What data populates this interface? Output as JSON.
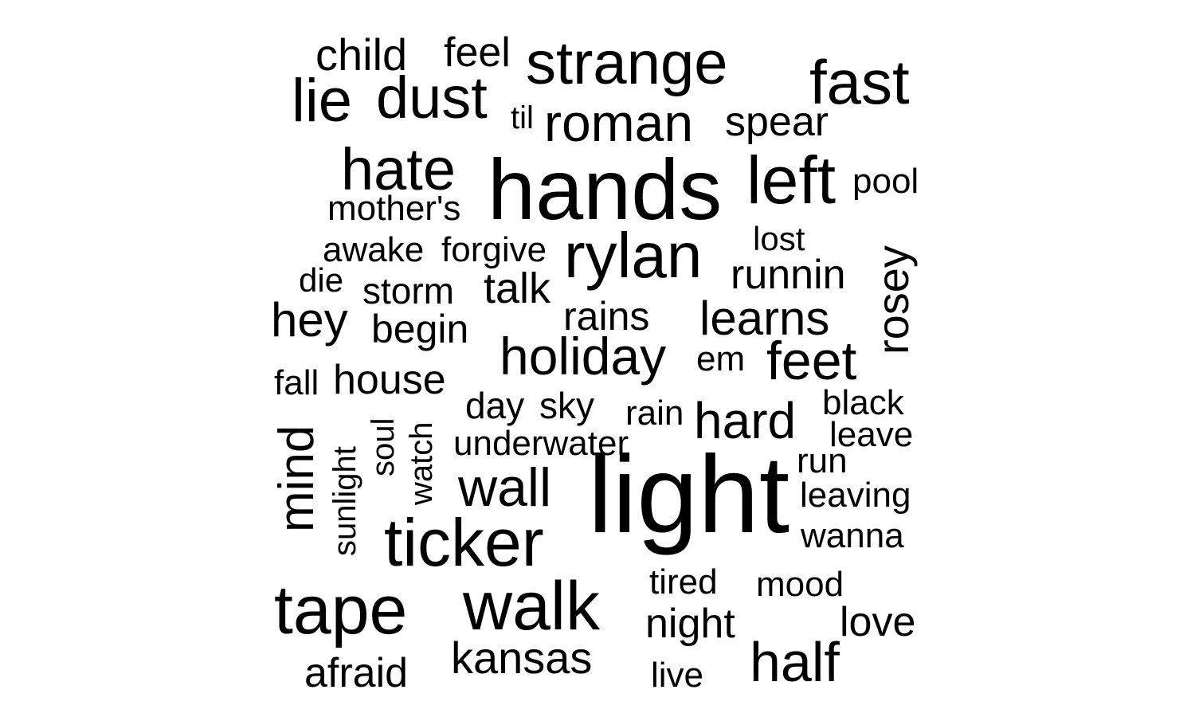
{
  "chart_data": {
    "type": "wordcloud",
    "color": "#000000",
    "words": [
      {
        "text": "light",
        "weight": 10,
        "orientation": "horizontal"
      },
      {
        "text": "hands",
        "weight": 9.5,
        "orientation": "horizontal"
      },
      {
        "text": "rylan",
        "weight": 7.5,
        "orientation": "horizontal"
      },
      {
        "text": "left",
        "weight": 7.5,
        "orientation": "horizontal"
      },
      {
        "text": "ticker",
        "weight": 7.5,
        "orientation": "horizontal"
      },
      {
        "text": "tape",
        "weight": 7.5,
        "orientation": "horizontal"
      },
      {
        "text": "walk",
        "weight": 7.5,
        "orientation": "horizontal"
      },
      {
        "text": "fast",
        "weight": 7,
        "orientation": "horizontal"
      },
      {
        "text": "strange",
        "weight": 6.5,
        "orientation": "horizontal"
      },
      {
        "text": "lie",
        "weight": 6.5,
        "orientation": "horizontal"
      },
      {
        "text": "dust",
        "weight": 6.5,
        "orientation": "horizontal"
      },
      {
        "text": "hate",
        "weight": 6.5,
        "orientation": "horizontal"
      },
      {
        "text": "half",
        "weight": 6.5,
        "orientation": "horizontal"
      },
      {
        "text": "holiday",
        "weight": 6,
        "orientation": "horizontal"
      },
      {
        "text": "roman",
        "weight": 6,
        "orientation": "horizontal"
      },
      {
        "text": "feet",
        "weight": 6,
        "orientation": "horizontal"
      },
      {
        "text": "hard",
        "weight": 6,
        "orientation": "horizontal"
      },
      {
        "text": "wall",
        "weight": 6,
        "orientation": "horizontal"
      },
      {
        "text": "mind",
        "weight": 6,
        "orientation": "vertical"
      },
      {
        "text": "learns",
        "weight": 5.5,
        "orientation": "horizontal"
      },
      {
        "text": "hey",
        "weight": 5.5,
        "orientation": "horizontal"
      },
      {
        "text": "kansas",
        "weight": 5.5,
        "orientation": "horizontal"
      },
      {
        "text": "child",
        "weight": 5,
        "orientation": "horizontal"
      },
      {
        "text": "talk",
        "weight": 5,
        "orientation": "horizontal"
      },
      {
        "text": "rosey",
        "weight": 5,
        "orientation": "vertical"
      },
      {
        "text": "spear",
        "weight": 4.5,
        "orientation": "horizontal"
      },
      {
        "text": "feel",
        "weight": 4.5,
        "orientation": "horizontal"
      },
      {
        "text": "runnin",
        "weight": 4.5,
        "orientation": "horizontal"
      },
      {
        "text": "rains",
        "weight": 4.5,
        "orientation": "horizontal"
      },
      {
        "text": "begin",
        "weight": 4.5,
        "orientation": "horizontal"
      },
      {
        "text": "house",
        "weight": 4.5,
        "orientation": "horizontal"
      },
      {
        "text": "night",
        "weight": 4.5,
        "orientation": "horizontal"
      },
      {
        "text": "love",
        "weight": 4.5,
        "orientation": "horizontal"
      },
      {
        "text": "afraid",
        "weight": 4.5,
        "orientation": "horizontal"
      },
      {
        "text": "pool",
        "weight": 4,
        "orientation": "horizontal"
      },
      {
        "text": "mother's",
        "weight": 4,
        "orientation": "horizontal"
      },
      {
        "text": "awake",
        "weight": 4,
        "orientation": "horizontal"
      },
      {
        "text": "forgive",
        "weight": 4,
        "orientation": "horizontal"
      },
      {
        "text": "storm",
        "weight": 4,
        "orientation": "horizontal"
      },
      {
        "text": "em",
        "weight": 4,
        "orientation": "horizontal"
      },
      {
        "text": "fall",
        "weight": 4,
        "orientation": "horizontal"
      },
      {
        "text": "day",
        "weight": 4,
        "orientation": "horizontal"
      },
      {
        "text": "sky",
        "weight": 4,
        "orientation": "horizontal"
      },
      {
        "text": "black",
        "weight": 4,
        "orientation": "horizontal"
      },
      {
        "text": "leave",
        "weight": 4,
        "orientation": "horizontal"
      },
      {
        "text": "underwater",
        "weight": 4,
        "orientation": "horizontal"
      },
      {
        "text": "run",
        "weight": 4,
        "orientation": "horizontal"
      },
      {
        "text": "leaving",
        "weight": 4,
        "orientation": "horizontal"
      },
      {
        "text": "wanna",
        "weight": 4,
        "orientation": "horizontal"
      },
      {
        "text": "tired",
        "weight": 4,
        "orientation": "horizontal"
      },
      {
        "text": "mood",
        "weight": 4,
        "orientation": "horizontal"
      },
      {
        "text": "live",
        "weight": 4,
        "orientation": "horizontal"
      },
      {
        "text": "lost",
        "weight": 4,
        "orientation": "horizontal"
      },
      {
        "text": "rain",
        "weight": 4,
        "orientation": "horizontal"
      },
      {
        "text": "die",
        "weight": 4,
        "orientation": "horizontal"
      },
      {
        "text": "til",
        "weight": 3.5,
        "orientation": "horizontal"
      },
      {
        "text": "sunlight",
        "weight": 4,
        "orientation": "vertical"
      },
      {
        "text": "soul",
        "weight": 4,
        "orientation": "vertical"
      },
      {
        "text": "watch",
        "weight": 4,
        "orientation": "vertical"
      }
    ]
  }
}
